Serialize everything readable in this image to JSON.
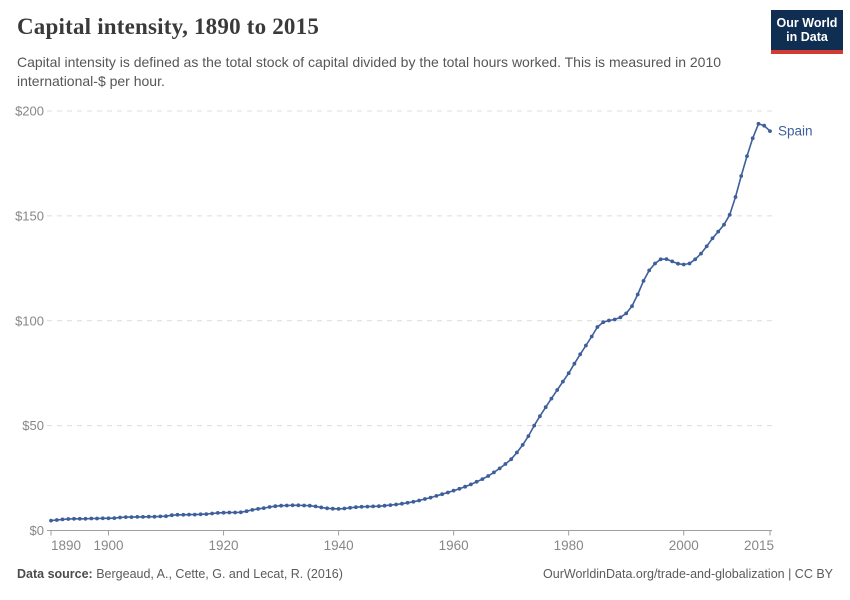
{
  "header": {
    "title": "Capital intensity, 1890 to 2015",
    "subtitle": "Capital intensity is defined as the total stock of capital divided by the total hours worked. This is measured in 2010 international-$ per hour.",
    "logo": {
      "line1": "Our World",
      "line2": "in Data"
    }
  },
  "footer": {
    "source_label": "Data source:",
    "source_text": " Bergeaud, A., Cette, G. and Lecat, R. (2016)",
    "credit": "OurWorldinData.org/trade-and-globalization | CC BY"
  },
  "colors": {
    "line": "#3e5f9a",
    "entity_label": "#4a66a0",
    "gridline": "#dcdcdc",
    "axis": "#9e9e9e",
    "tick_label": "#878787",
    "logo_bg": "#102d52",
    "logo_stripe": "#d23a34"
  },
  "chart_data": {
    "type": "line",
    "title": "Capital intensity, 1890 to 2015",
    "xlabel": "",
    "ylabel": "2010 international-$ per hour",
    "xlim": [
      1890,
      2015
    ],
    "ylim": [
      0,
      200
    ],
    "grid": "horizontal-dashed",
    "legend_position": "end-of-line",
    "x_ticks": [
      {
        "value": 1890,
        "label": "1890"
      },
      {
        "value": 1900,
        "label": "1900"
      },
      {
        "value": 1920,
        "label": "1920"
      },
      {
        "value": 1940,
        "label": "1940"
      },
      {
        "value": 1960,
        "label": "1960"
      },
      {
        "value": 1980,
        "label": "1980"
      },
      {
        "value": 2000,
        "label": "2000"
      },
      {
        "value": 2015,
        "label": "2015"
      }
    ],
    "y_ticks": [
      {
        "value": 0,
        "label": "$0"
      },
      {
        "value": 50,
        "label": "$50"
      },
      {
        "value": 100,
        "label": "$100"
      },
      {
        "value": 150,
        "label": "$150"
      },
      {
        "value": 200,
        "label": "$200"
      }
    ],
    "series": [
      {
        "name": "Spain",
        "color": "#3e5f9a",
        "x_start": 1890,
        "x_interval": 1,
        "values": [
          4.7,
          5.0,
          5.3,
          5.5,
          5.6,
          5.6,
          5.6,
          5.7,
          5.7,
          5.8,
          5.8,
          5.9,
          6.2,
          6.4,
          6.4,
          6.5,
          6.5,
          6.6,
          6.6,
          6.7,
          6.8,
          7.3,
          7.5,
          7.5,
          7.6,
          7.6,
          7.7,
          7.8,
          8.1,
          8.4,
          8.5,
          8.6,
          8.6,
          8.7,
          9.2,
          9.8,
          10.3,
          10.7,
          11.2,
          11.6,
          11.8,
          11.9,
          12.0,
          12.0,
          11.9,
          11.8,
          11.5,
          11.0,
          10.6,
          10.4,
          10.3,
          10.5,
          10.8,
          11.1,
          11.3,
          11.4,
          11.5,
          11.6,
          11.8,
          12.1,
          12.4,
          12.8,
          13.2,
          13.7,
          14.3,
          15.0,
          15.7,
          16.5,
          17.3,
          18.1,
          19.0,
          19.9,
          20.9,
          22.0,
          23.2,
          24.5,
          26.0,
          27.7,
          29.6,
          31.7,
          34.0,
          37.2,
          40.8,
          45.0,
          50.0,
          54.5,
          58.8,
          62.9,
          67.0,
          71.0,
          75.0,
          79.5,
          84.0,
          88.2,
          92.5,
          97.0,
          99.3,
          100.1,
          100.6,
          101.6,
          103.5,
          107.0,
          112.5,
          119.0,
          124.0,
          127.3,
          129.3,
          129.4,
          128.3,
          127.2,
          126.8,
          127.3,
          129.3,
          132.0,
          135.5,
          139.3,
          142.5,
          145.8,
          150.5,
          159.0,
          169.0,
          178.5,
          187.0,
          193.9,
          193.0,
          190.4
        ]
      }
    ]
  }
}
